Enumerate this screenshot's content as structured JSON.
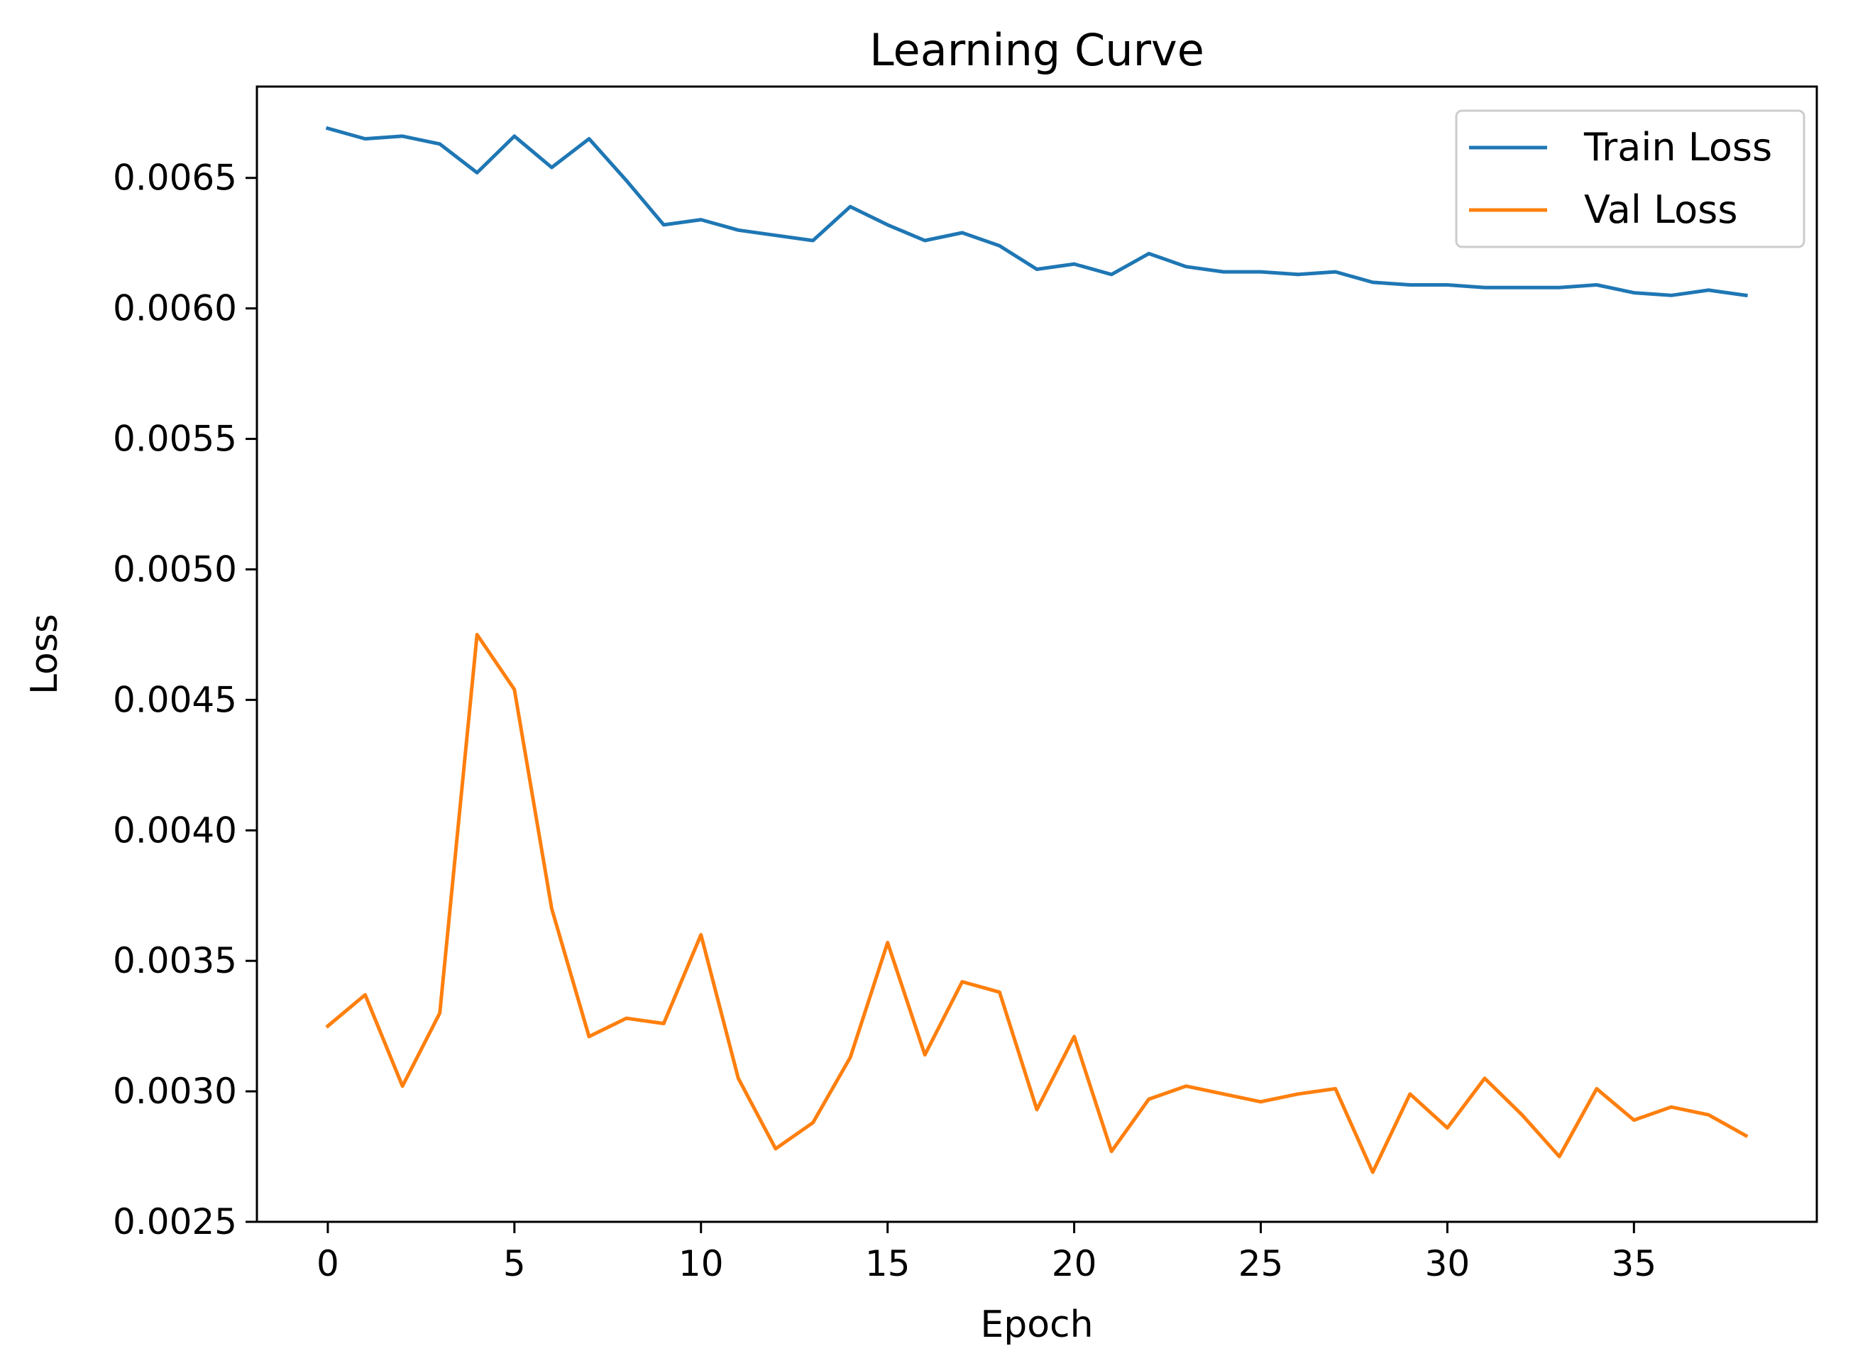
{
  "chart_data": {
    "type": "line",
    "title": "Learning Curve",
    "xlabel": "Epoch",
    "ylabel": "Loss",
    "xlim": [
      -1.9,
      39.9
    ],
    "ylim": [
      0.0025,
      0.00685
    ],
    "xticks": [
      0,
      5,
      10,
      15,
      20,
      25,
      30,
      35
    ],
    "yticks": [
      0.0025,
      0.003,
      0.0035,
      0.004,
      0.0045,
      0.005,
      0.0055,
      0.006,
      0.0065
    ],
    "ytick_labels": [
      "0.0025",
      "0.0030",
      "0.0035",
      "0.0040",
      "0.0045",
      "0.0050",
      "0.0055",
      "0.0060",
      "0.0065"
    ],
    "grid": false,
    "legend_position": "top-right",
    "x": [
      0,
      1,
      2,
      3,
      4,
      5,
      6,
      7,
      8,
      9,
      10,
      11,
      12,
      13,
      14,
      15,
      16,
      17,
      18,
      19,
      20,
      21,
      22,
      23,
      24,
      25,
      26,
      27,
      28,
      29,
      30,
      31,
      32,
      33,
      34,
      35,
      36,
      37,
      38
    ],
    "series": [
      {
        "name": "Train Loss",
        "color": "#1f77b4",
        "values": [
          0.00669,
          0.00665,
          0.00666,
          0.00663,
          0.00652,
          0.00666,
          0.00654,
          0.00665,
          0.00649,
          0.00632,
          0.00634,
          0.0063,
          0.00628,
          0.00626,
          0.00639,
          0.00632,
          0.00626,
          0.00629,
          0.00624,
          0.00615,
          0.00617,
          0.00613,
          0.00621,
          0.00616,
          0.00614,
          0.00614,
          0.00613,
          0.00614,
          0.0061,
          0.00609,
          0.00609,
          0.00608,
          0.00608,
          0.00608,
          0.00609,
          0.00606,
          0.00605,
          0.00607,
          0.00605
        ]
      },
      {
        "name": "Val Loss",
        "color": "#ff7f0e",
        "values": [
          0.00325,
          0.00337,
          0.00302,
          0.0033,
          0.00475,
          0.00454,
          0.0037,
          0.00321,
          0.00328,
          0.00326,
          0.0036,
          0.00305,
          0.00278,
          0.00288,
          0.00313,
          0.00357,
          0.00314,
          0.00342,
          0.00338,
          0.00293,
          0.00321,
          0.00277,
          0.00297,
          0.00302,
          0.00299,
          0.00296,
          0.00299,
          0.00301,
          0.00269,
          0.00299,
          0.00286,
          0.00305,
          0.00291,
          0.00275,
          0.00301,
          0.00289,
          0.00294,
          0.00291,
          0.00283
        ]
      }
    ]
  }
}
